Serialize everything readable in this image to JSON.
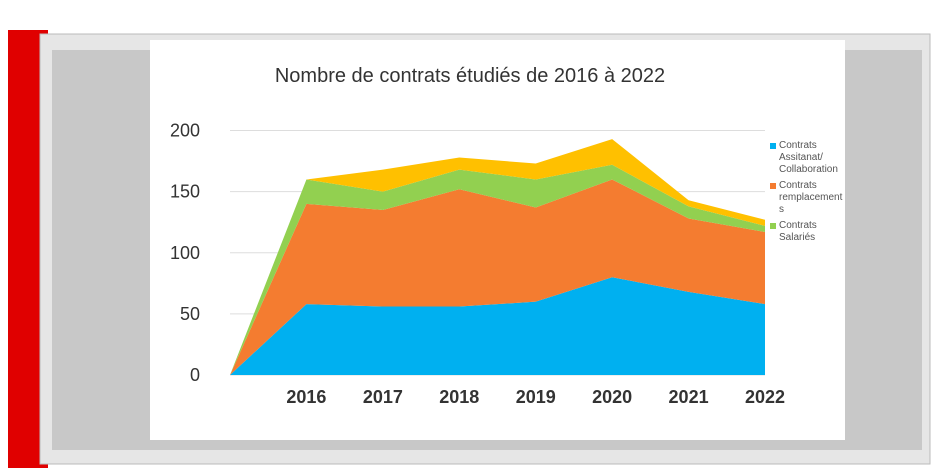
{
  "chart_data": {
    "type": "stacked_area",
    "title": "Nombre de contrats étudiés de 2016 à 2022",
    "categories": [
      null,
      "2016",
      "2017",
      "2018",
      "2019",
      "2020",
      "2021",
      "2022"
    ],
    "series": [
      {
        "name": "Contrats Assitanat/ Collaboration",
        "color": "#00b0f0",
        "values": [
          0,
          58,
          56,
          56,
          60,
          80,
          68,
          58
        ]
      },
      {
        "name": "Contrats remplacement s",
        "color": "#f47c30",
        "values": [
          0,
          82,
          79,
          96,
          77,
          80,
          60,
          59
        ]
      },
      {
        "name": "Contrats Salariés",
        "color": "#92d050",
        "values": [
          0,
          20,
          15,
          16,
          23,
          12,
          10,
          5
        ]
      },
      {
        "color": "#ffc000",
        "values": [
          0,
          0,
          18,
          10,
          13,
          21,
          5,
          5
        ]
      }
    ],
    "ylim": [
      0,
      225
    ],
    "yticks": [
      0,
      50,
      100,
      150,
      200
    ],
    "grid": true,
    "legend": "right"
  }
}
